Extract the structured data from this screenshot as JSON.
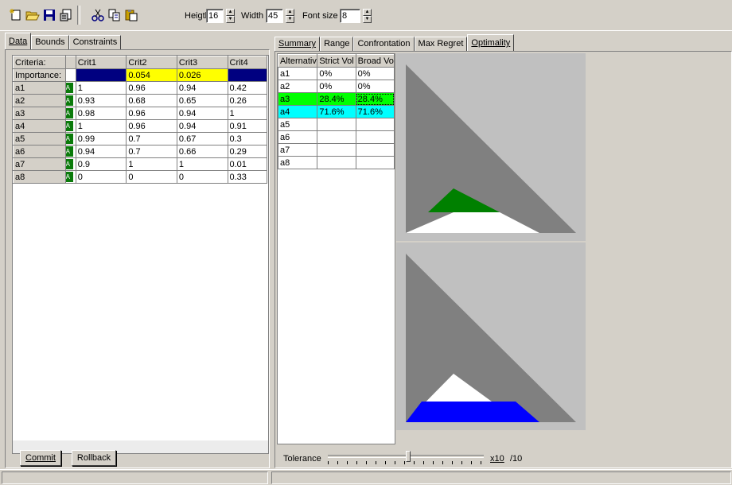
{
  "toolbar": {
    "height_label": "Heigth",
    "height_value": "16",
    "width_label": "Width",
    "width_value": "45",
    "fontsize_label": "Font size",
    "fontsize_value": "8"
  },
  "left_tabs": [
    "Data",
    "Bounds",
    "Constraints"
  ],
  "grid": {
    "headers": [
      "Criteria:",
      "",
      "Crit1",
      "Crit2",
      "Crit3",
      "Crit4"
    ],
    "importance": {
      "label": "Importance:",
      "values": [
        "",
        "0.054",
        "0.026",
        ""
      ]
    },
    "rows": [
      {
        "name": "a1",
        "values": [
          "1",
          "0.96",
          "0.94",
          "0.42"
        ]
      },
      {
        "name": "a2",
        "values": [
          "0.93",
          "0.68",
          "0.65",
          "0.26"
        ]
      },
      {
        "name": "a3",
        "values": [
          "0.98",
          "0.96",
          "0.94",
          "1"
        ]
      },
      {
        "name": "a4",
        "values": [
          "1",
          "0.96",
          "0.94",
          "0.91"
        ]
      },
      {
        "name": "a5",
        "values": [
          "0.99",
          "0.7",
          "0.67",
          "0.3"
        ]
      },
      {
        "name": "a6",
        "values": [
          "0.94",
          "0.7",
          "0.66",
          "0.29"
        ]
      },
      {
        "name": "a7",
        "values": [
          "0.9",
          "1",
          "1",
          "0.01"
        ]
      },
      {
        "name": "a8",
        "values": [
          "0",
          "0",
          "0",
          "0.33"
        ]
      }
    ]
  },
  "buttons": {
    "commit": "Commit",
    "rollback": "Rollback"
  },
  "right_tabs": [
    "Summary",
    "Range",
    "Confrontation",
    "Max Regret",
    "Optimality"
  ],
  "optimality": {
    "headers": [
      "Alternativ",
      "Strict Vol",
      "Broad Vo"
    ],
    "rows": [
      {
        "name": "a1",
        "strict": "0%",
        "broad": "0%"
      },
      {
        "name": "a2",
        "strict": "0%",
        "broad": "0%"
      },
      {
        "name": "a3",
        "strict": "28.4%",
        "broad": "28.4%"
      },
      {
        "name": "a4",
        "strict": "71.6%",
        "broad": "71.6%"
      },
      {
        "name": "a5",
        "strict": "",
        "broad": ""
      },
      {
        "name": "a6",
        "strict": "",
        "broad": ""
      },
      {
        "name": "a7",
        "strict": "",
        "broad": ""
      },
      {
        "name": "a8",
        "strict": "",
        "broad": ""
      }
    ]
  },
  "tolerance": {
    "label": "Tolerance",
    "mult": "x10",
    "div": "/10",
    "slider_fraction": 0.5
  },
  "colors": {
    "green": "#00ff00",
    "cyan": "#00ffff",
    "yellow": "#ffff00",
    "navy": "#000080",
    "dark_green": "#008000",
    "blue": "#0000ff"
  }
}
